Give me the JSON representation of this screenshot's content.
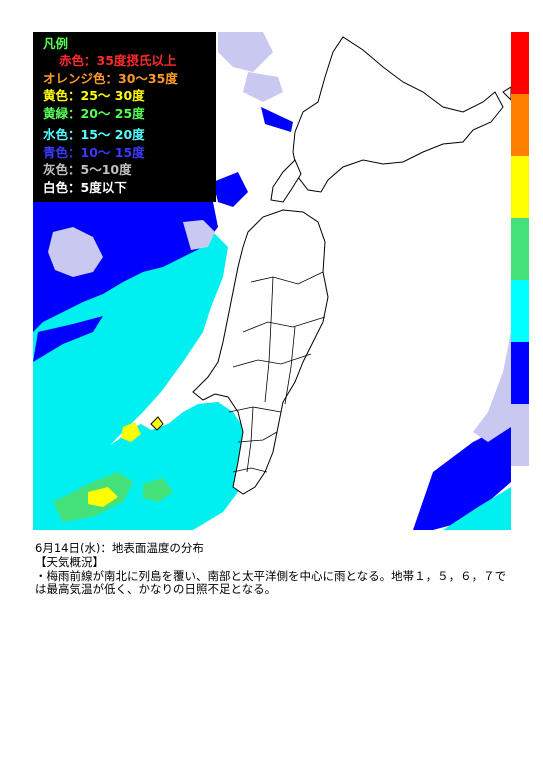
{
  "legend": {
    "title": "凡例",
    "items": [
      {
        "label": "赤色：35度摂氏以上",
        "color": "#ff0000",
        "text_color": "#ff2a2a"
      },
      {
        "label": "オレンジ色：30～35度",
        "color": "#ff7f00",
        "text_color": "#ff9a2a"
      },
      {
        "label": "黄色：25～ 30度",
        "color": "#ffff00",
        "text_color": "#ffff00"
      },
      {
        "label": "黄緑：20～ 25度",
        "color": "#44e07a",
        "text_color": "#55ff55"
      },
      {
        "label": "水色：15～ 20度",
        "color": "#00ffff",
        "text_color": "#55ffff"
      },
      {
        "label": "青色：10～ 15度",
        "color": "#0000ff",
        "text_color": "#3a3aff"
      },
      {
        "label": "灰色：5～10度",
        "color": "#c8c8f0",
        "text_color": "#c0c0c0"
      },
      {
        "label": "白色：5度以下",
        "color": "#ffffff",
        "text_color": "#ffffff"
      }
    ]
  },
  "color_bar": [
    "#ff0000",
    "#ff7f00",
    "#ffff00",
    "#44e07a",
    "#00ffff",
    "#0000ff",
    "#c8c8f0"
  ],
  "caption": {
    "title": "6月14日(水)：地表面温度の分布",
    "section": "【天気概況】",
    "body": "・梅雨前線が南北に列島を覆い、南部と太平洋側を中心に雨となる。地帯１，５，６，７では最高気温が低く、かなりの日照不足となる。"
  }
}
